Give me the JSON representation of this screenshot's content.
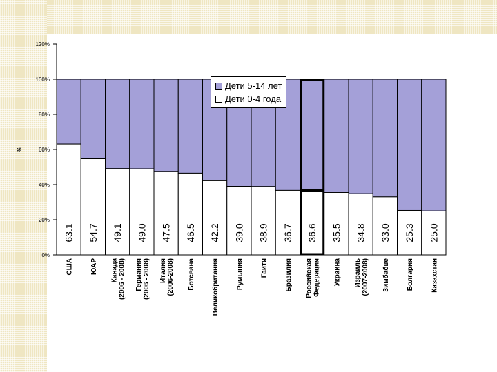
{
  "colors": {
    "older": "#a4a0d8",
    "younger": "#ffffff",
    "stroke": "#000000",
    "highlight": "#000000"
  },
  "chart_data": {
    "type": "bar",
    "stacked": true,
    "ylabel": "%",
    "ylim": [
      0,
      120
    ],
    "yticks": [
      "0%",
      "20%",
      "40%",
      "60%",
      "80%",
      "100%",
      "120%"
    ],
    "categories": [
      "США",
      "ЮАР",
      "Канада (2006 - 2008)",
      "Германия (2006 - 2008)",
      "Италия (2006-2008)",
      "Ботсвана",
      "Великобритания",
      "Румыния",
      "Гаити",
      "Бразилия",
      "Российская Федерация",
      "Украина",
      "Израиль (2007-2008)",
      "Зимбабве",
      "Болгария",
      "Казахстан"
    ],
    "category_lines": [
      [
        "США"
      ],
      [
        "ЮАР"
      ],
      [
        "Канада",
        "(2006 - 2008)"
      ],
      [
        "Германия",
        "(2006 - 2008)"
      ],
      [
        "Италия",
        "(2006-2008)"
      ],
      [
        "Ботсвана"
      ],
      [
        "Великобритания"
      ],
      [
        "Румыния"
      ],
      [
        "Гаити"
      ],
      [
        "Бразилия"
      ],
      [
        "Российская",
        "Федерация"
      ],
      [
        "Украина"
      ],
      [
        "Израиль",
        "(2007-2008)"
      ],
      [
        "Зимбабве"
      ],
      [
        "Болгария"
      ],
      [
        "Казахстан"
      ]
    ],
    "series": [
      {
        "name": "Дети 0-4 года",
        "values": [
          63.1,
          54.7,
          49.1,
          49.0,
          47.5,
          46.5,
          42.2,
          39.0,
          38.9,
          36.7,
          36.6,
          35.5,
          34.8,
          33.0,
          25.3,
          25.0
        ],
        "labels": [
          "63.1",
          "54.7",
          "49.1",
          "49.0",
          "47.5",
          "46.5",
          "42.2",
          "39.0",
          "38.9",
          "36.7",
          "36.6",
          "35.5",
          "34.8",
          "33.0",
          "25.3",
          "25.0"
        ]
      },
      {
        "name": "Дети 5-14 лет",
        "values": [
          36.9,
          45.3,
          50.9,
          51.0,
          52.5,
          53.5,
          57.8,
          61.0,
          61.1,
          63.3,
          63.4,
          64.5,
          65.2,
          67.0,
          74.7,
          75.0
        ]
      }
    ],
    "highlighted_category": "Российская Федерация",
    "legend": [
      "Дети 5-14 лет",
      "Дети 0-4 года"
    ],
    "legend_position": "top-right"
  }
}
